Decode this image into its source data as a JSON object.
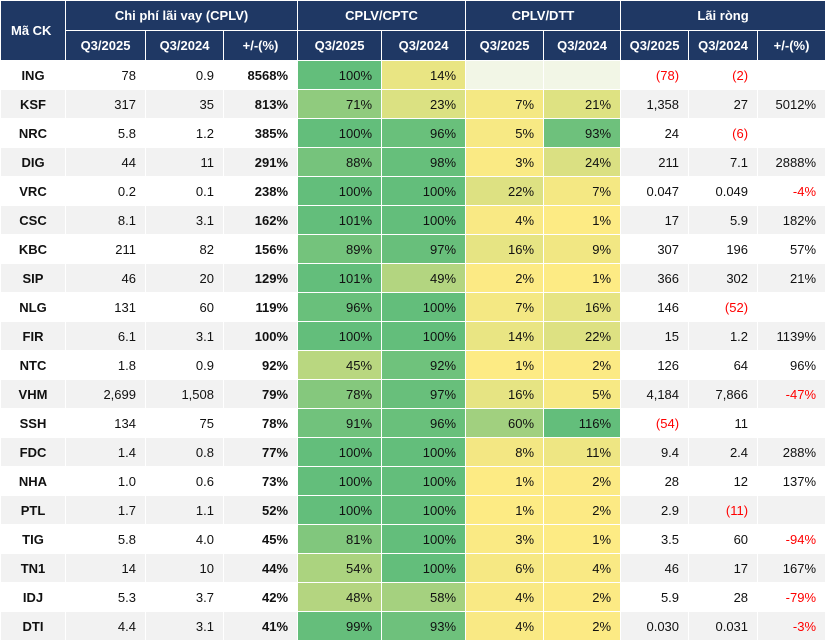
{
  "header": {
    "code_label": "Mã CK",
    "groups": [
      {
        "label": "Chi phí lãi vay (CPLV)",
        "cols": [
          "Q3/2025",
          "Q3/2024",
          "+/-(%)"
        ]
      },
      {
        "label": "CPLV/CPTC",
        "cols": [
          "Q3/2025",
          "Q3/2024"
        ]
      },
      {
        "label": "CPLV/DTT",
        "cols": [
          "Q3/2025",
          "Q3/2024"
        ]
      },
      {
        "label": "Lãi ròng",
        "cols": [
          "Q3/2025",
          "Q3/2024",
          "+/-(%)"
        ]
      }
    ]
  },
  "colors": {
    "header_bg": "#1f3864",
    "row_bg": "#ffffff",
    "row_alt": "#f2f2f2",
    "scale_low": "#ffeb84",
    "scale_high": "#63be7b",
    "scale_blank": "#f2f6e6",
    "negative": "#ff0000"
  },
  "chart_data": {
    "type": "table",
    "columns": [
      "Mã CK",
      "Chi phí lãi vay (CPLV) Q3/2025",
      "Chi phí lãi vay (CPLV) Q3/2024",
      "Chi phí lãi vay (CPLV) +/-(%)",
      "CPLV/CPTC Q3/2025",
      "CPLV/CPTC Q3/2024",
      "CPLV/DTT Q3/2025",
      "CPLV/DTT Q3/2024",
      "Lãi ròng Q3/2025",
      "Lãi ròng Q3/2024",
      "Lãi ròng +/-(%)"
    ],
    "rows": [
      [
        "ING",
        "78",
        "0.9",
        "8568%",
        "100%",
        "14%",
        "",
        "",
        "(78)",
        "(2)",
        ""
      ],
      [
        "KSF",
        "317",
        "35",
        "813%",
        "71%",
        "23%",
        "7%",
        "21%",
        "1,358",
        "27",
        "5012%"
      ],
      [
        "NRC",
        "5.8",
        "1.2",
        "385%",
        "100%",
        "96%",
        "5%",
        "93%",
        "24",
        "(6)",
        ""
      ],
      [
        "DIG",
        "44",
        "11",
        "291%",
        "88%",
        "98%",
        "3%",
        "24%",
        "211",
        "7.1",
        "2888%"
      ],
      [
        "VRC",
        "0.2",
        "0.1",
        "238%",
        "100%",
        "100%",
        "22%",
        "7%",
        "0.047",
        "0.049",
        "-4%"
      ],
      [
        "CSC",
        "8.1",
        "3.1",
        "162%",
        "101%",
        "100%",
        "4%",
        "1%",
        "17",
        "5.9",
        "182%"
      ],
      [
        "KBC",
        "211",
        "82",
        "156%",
        "89%",
        "97%",
        "16%",
        "9%",
        "307",
        "196",
        "57%"
      ],
      [
        "SIP",
        "46",
        "20",
        "129%",
        "101%",
        "49%",
        "2%",
        "1%",
        "366",
        "302",
        "21%"
      ],
      [
        "NLG",
        "131",
        "60",
        "119%",
        "96%",
        "100%",
        "7%",
        "16%",
        "146",
        "(52)",
        ""
      ],
      [
        "FIR",
        "6.1",
        "3.1",
        "100%",
        "100%",
        "100%",
        "14%",
        "22%",
        "15",
        "1.2",
        "1139%"
      ],
      [
        "NTC",
        "1.8",
        "0.9",
        "92%",
        "45%",
        "92%",
        "1%",
        "2%",
        "126",
        "64",
        "96%"
      ],
      [
        "VHM",
        "2,699",
        "1,508",
        "79%",
        "78%",
        "97%",
        "16%",
        "5%",
        "4,184",
        "7,866",
        "-47%"
      ],
      [
        "SSH",
        "134",
        "75",
        "78%",
        "91%",
        "96%",
        "60%",
        "116%",
        "(54)",
        "11",
        ""
      ],
      [
        "FDC",
        "1.4",
        "0.8",
        "77%",
        "100%",
        "100%",
        "8%",
        "11%",
        "9.4",
        "2.4",
        "288%"
      ],
      [
        "NHA",
        "1.0",
        "0.6",
        "73%",
        "100%",
        "100%",
        "1%",
        "2%",
        "28",
        "12",
        "137%"
      ],
      [
        "PTL",
        "1.7",
        "1.1",
        "52%",
        "100%",
        "100%",
        "1%",
        "2%",
        "2.9",
        "(11)",
        ""
      ],
      [
        "TIG",
        "5.8",
        "4.0",
        "45%",
        "81%",
        "100%",
        "3%",
        "1%",
        "3.5",
        "60",
        "-94%"
      ],
      [
        "TN1",
        "14",
        "10",
        "44%",
        "54%",
        "100%",
        "6%",
        "4%",
        "46",
        "17",
        "167%"
      ],
      [
        "IDJ",
        "5.3",
        "3.7",
        "42%",
        "48%",
        "58%",
        "4%",
        "2%",
        "5.9",
        "28",
        "-79%"
      ],
      [
        "DTI",
        "4.4",
        "3.1",
        "41%",
        "99%",
        "93%",
        "4%",
        "2%",
        "0.030",
        "0.031",
        "-3%"
      ]
    ]
  }
}
